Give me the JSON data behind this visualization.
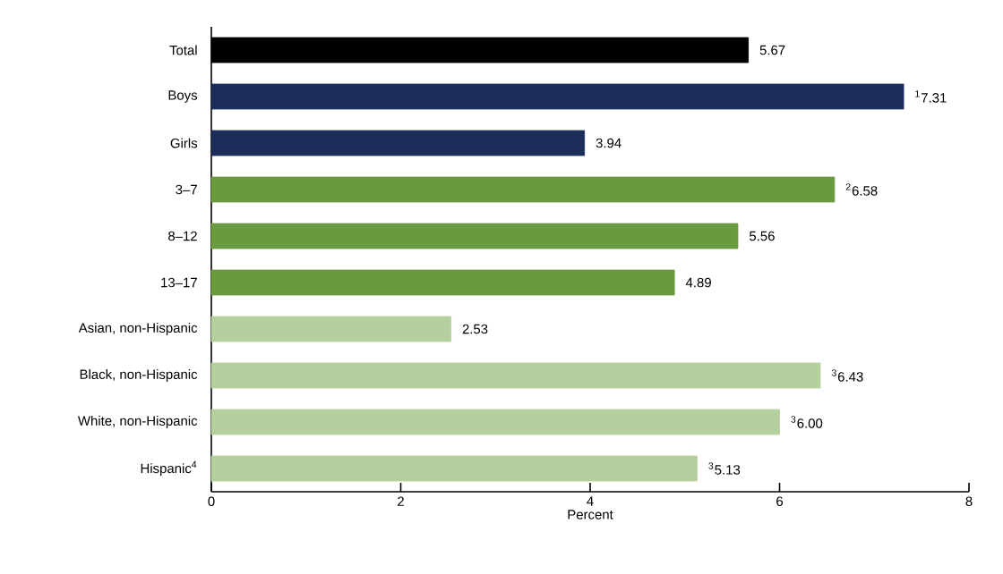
{
  "chart_data": {
    "type": "bar",
    "orientation": "horizontal",
    "xlabel": "Percent",
    "categories": [
      "Total",
      "Boys",
      "Girls",
      "3–7",
      "8–12",
      "13–17",
      "Asian, non-Hispanic",
      "Black, non-Hispanic",
      "White, non-Hispanic",
      "Hispanic$^{4}$"
    ],
    "values": [
      5.67,
      7.31,
      3.94,
      6.58,
      5.56,
      4.89,
      2.53,
      6.43,
      6.0,
      5.13
    ],
    "colors": [
      "#000000",
      "#1c2d5a",
      "#1c2d5a",
      "#6a9a3f",
      "#6a9a3f",
      "#6a9a3f",
      "#b5cf9f",
      "#b5cf9f",
      "#b5cf9f",
      "#b5cf9f"
    ],
    "value_labels": [
      "5.67",
      "$^{1}$7.31",
      "3.94",
      "$^{2}$6.58",
      "5.56",
      "4.89",
      "2.53",
      "$^{3}$6.43",
      "$^{3}$6.00",
      "$^{3}$5.13"
    ],
    "xlim": [
      0,
      8
    ],
    "xticks": [
      0,
      2,
      4,
      6,
      8
    ],
    "grid": false
  }
}
